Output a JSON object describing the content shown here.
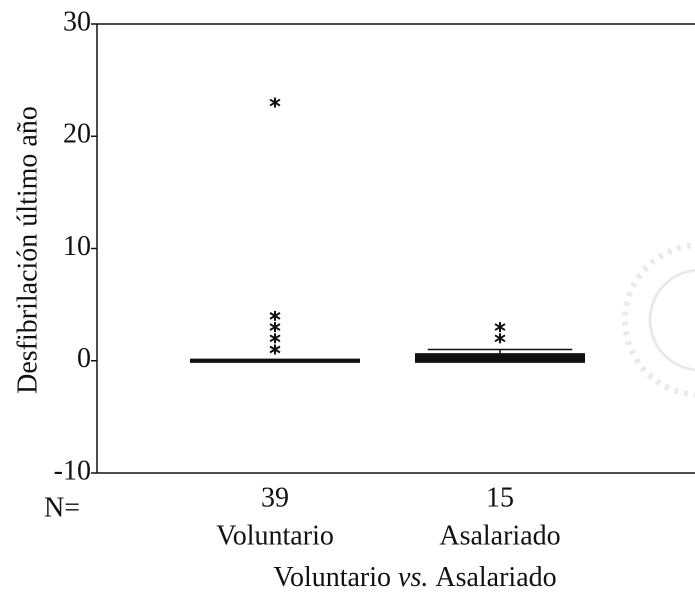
{
  "chart_data": {
    "type": "box",
    "y_label": "Desfibrilación último año",
    "x_label": [
      {
        "text": "Voluntario"
      },
      {
        "text": "vs.",
        "italic": true
      },
      {
        "text": "Asalariado"
      }
    ],
    "n_label": "N=",
    "categories": [
      "Voluntario",
      "Asalariado"
    ],
    "n": [
      39,
      15
    ],
    "boxes": [
      {
        "q1": 0,
        "median": 0,
        "q3": 0,
        "whisker_low": 0,
        "whisker_high": 0,
        "outliers": [
          1,
          2,
          3,
          4,
          23
        ]
      },
      {
        "q1": 0,
        "median": 0,
        "q3": 0.5,
        "whisker_low": 0,
        "whisker_high": 1,
        "outliers": [
          2,
          3
        ]
      }
    ],
    "color": "#111111",
    "ylim": [
      -10,
      30
    ],
    "yticks": [
      -10,
      0,
      10,
      20,
      30
    ]
  }
}
